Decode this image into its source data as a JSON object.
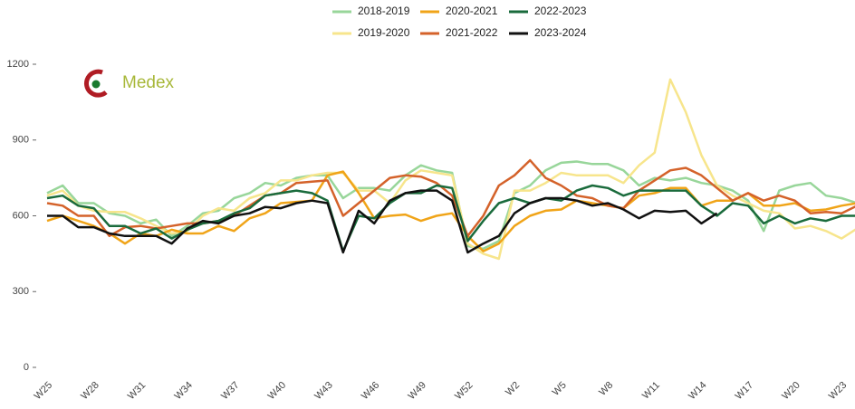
{
  "chart_data": {
    "type": "line",
    "watermark": "Medex",
    "categories": [
      "W25",
      null,
      null,
      "W28",
      null,
      null,
      "W31",
      null,
      null,
      "W34",
      null,
      null,
      "W37",
      null,
      null,
      "W40",
      null,
      null,
      "W43",
      null,
      null,
      "W46",
      null,
      null,
      "W49",
      null,
      null,
      "W52",
      null,
      null,
      "W2",
      null,
      null,
      "W5",
      null,
      null,
      "W8",
      null,
      null,
      "W11",
      null,
      null,
      "W14",
      null,
      null,
      "W17",
      null,
      null,
      "W20",
      null,
      null,
      "W23",
      null
    ],
    "series": [
      {
        "name": "2018-2019",
        "color": "#98d69a",
        "values": [
          690,
          720,
          650,
          650,
          610,
          600,
          570,
          585,
          520,
          560,
          610,
          620,
          670,
          690,
          730,
          720,
          750,
          760,
          760,
          670,
          710,
          710,
          700,
          760,
          800,
          780,
          770,
          480,
          470,
          500,
          690,
          720,
          780,
          810,
          815,
          805,
          805,
          780,
          720,
          750,
          740,
          750,
          730,
          720,
          700,
          660,
          540,
          700,
          720,
          730,
          680,
          670,
          650
        ]
      },
      {
        "name": "2019-2020",
        "color": "#f7e58c",
        "values": [
          680,
          700,
          640,
          620,
          615,
          615,
          590,
          560,
          530,
          540,
          600,
          630,
          620,
          670,
          690,
          740,
          740,
          760,
          770,
          770,
          700,
          700,
          650,
          740,
          780,
          770,
          760,
          490,
          450,
          430,
          700,
          700,
          730,
          770,
          760,
          760,
          760,
          730,
          800,
          850,
          1140,
          1010,
          840,
          720,
          680,
          650,
          620,
          610,
          550,
          560,
          540,
          510,
          550
        ]
      },
      {
        "name": "2020-2021",
        "color": "#f0a418",
        "values": [
          580,
          600,
          580,
          560,
          530,
          490,
          530,
          520,
          545,
          530,
          530,
          560,
          540,
          590,
          610,
          650,
          655,
          660,
          760,
          775,
          690,
          590,
          600,
          605,
          580,
          600,
          610,
          520,
          460,
          490,
          560,
          600,
          620,
          625,
          660,
          650,
          640,
          630,
          680,
          690,
          710,
          710,
          640,
          660,
          660,
          690,
          640,
          640,
          650,
          620,
          625,
          640,
          650
        ]
      },
      {
        "name": "2021-2022",
        "color": "#d4622a",
        "values": [
          650,
          640,
          600,
          600,
          520,
          555,
          560,
          550,
          560,
          570,
          570,
          580,
          600,
          640,
          680,
          690,
          730,
          735,
          740,
          600,
          650,
          700,
          750,
          760,
          755,
          730,
          680,
          520,
          600,
          720,
          760,
          820,
          750,
          720,
          680,
          670,
          640,
          630,
          700,
          740,
          780,
          790,
          760,
          710,
          660,
          690,
          660,
          680,
          660,
          610,
          615,
          610,
          640
        ]
      },
      {
        "name": "2022-2023",
        "color": "#1a6b3c",
        "values": [
          670,
          680,
          640,
          630,
          560,
          560,
          530,
          550,
          510,
          545,
          570,
          580,
          610,
          630,
          680,
          690,
          700,
          690,
          660,
          460,
          600,
          590,
          650,
          690,
          690,
          720,
          710,
          500,
          580,
          650,
          670,
          650,
          670,
          660,
          700,
          720,
          710,
          680,
          700,
          700,
          700,
          700,
          640,
          600,
          650,
          640,
          570,
          600,
          570,
          590,
          580,
          600,
          600
        ]
      },
      {
        "name": "2023-2024",
        "color": "#111111",
        "values": [
          600,
          600,
          555,
          555,
          530,
          520,
          520,
          520,
          490,
          550,
          580,
          570,
          600,
          610,
          635,
          630,
          650,
          660,
          650,
          455,
          620,
          570,
          660,
          690,
          700,
          700,
          660,
          455,
          490,
          520,
          610,
          650,
          670,
          670,
          660,
          640,
          650,
          625,
          590,
          620,
          615,
          620,
          570,
          610,
          null,
          null,
          null,
          null,
          null,
          null,
          null,
          null,
          null
        ]
      }
    ],
    "ylim": [
      0,
      1200
    ],
    "yticks": [
      0,
      300,
      600,
      900,
      1200
    ],
    "grid": false
  }
}
